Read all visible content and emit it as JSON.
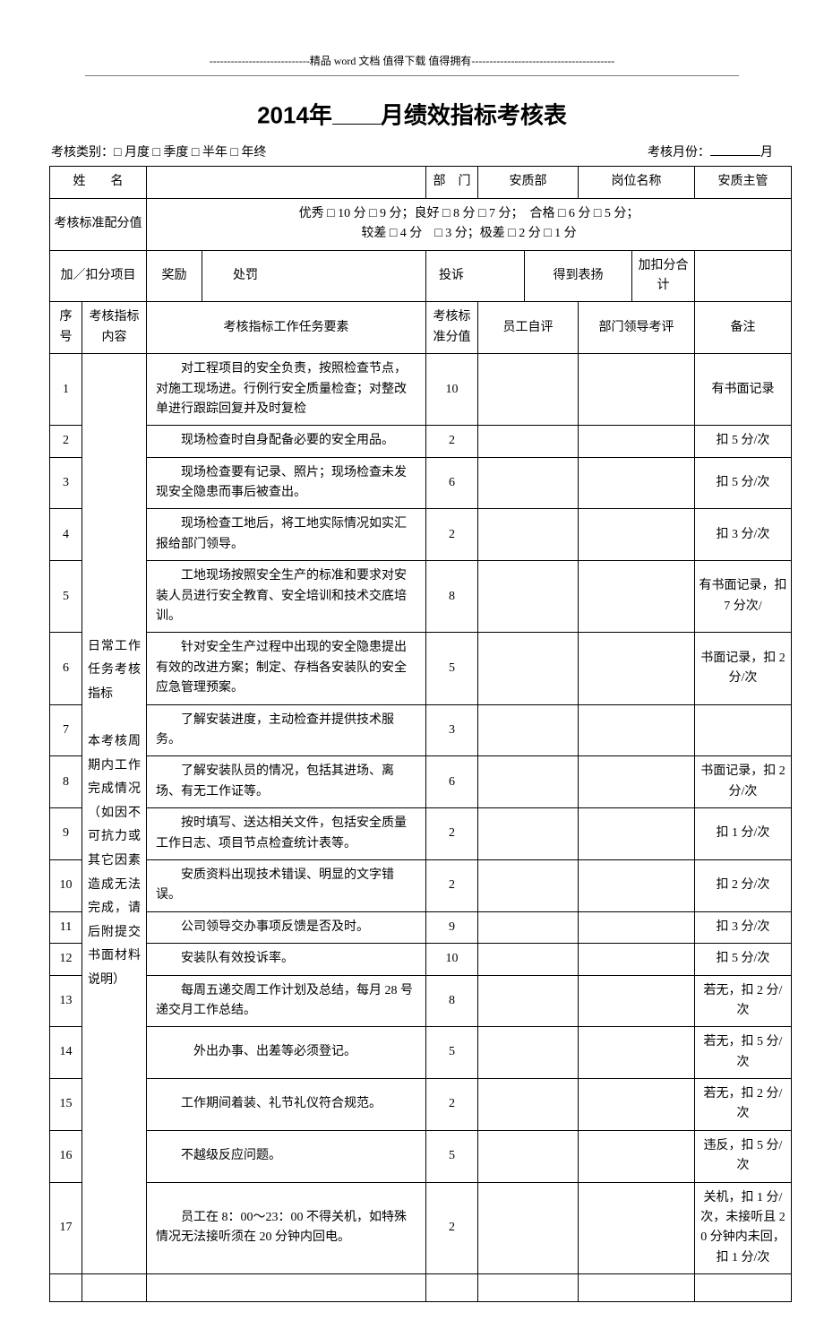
{
  "header_deco": {
    "center_text": "精品 word 文档  值得下载  值得拥有"
  },
  "title": {
    "year": "2014",
    "pre": "年",
    "post": "月绩效指标考核表"
  },
  "meta": {
    "left_label": "考核类别：",
    "options": "□ 月度  □ 季度  □ 半年  □ 年终",
    "right_label": "考核月份：",
    "right_suffix": "月"
  },
  "info_row": {
    "name_label": "姓　　名",
    "name_value": "",
    "dept_label": "部　门",
    "dept_value": "安质部",
    "post_label": "岗位名称",
    "post_value": "安质主管"
  },
  "score_std": {
    "label": "考核标准配分值",
    "text": "优秀  □ 10 分  □ 9 分；良好  □ 8 分  □ 7 分；　合格  □ 6 分  □ 5 分；\n较差  □ 4 分　□ 3 分；极差  □ 2 分  □ 1 分"
  },
  "adj_row": {
    "label": "加／扣分项目",
    "c1": "奖励",
    "c2": "处罚",
    "c3": "投诉",
    "c4": "得到表扬",
    "c5": "加扣分合计"
  },
  "columns": {
    "seq": "序号",
    "cat": "考核指标内容",
    "task": "考核指标工作任务要素",
    "std": "考核标准分值",
    "self": "员工自评",
    "leader": "部门领导考评",
    "note": "备注"
  },
  "category_label": "日常工作任务考核指标\n\n本考核周期内工作完成情况（如因不可抗力或其它因素造成无法完成，请后附提交书面材料说明）",
  "rows": [
    {
      "seq": "1",
      "task": "对工程项目的安全负责，按照检查节点，对施工现场进。行例行安全质量检查；对整改单进行跟踪回复并及时复检",
      "std": "10",
      "note": "有书面记录"
    },
    {
      "seq": "2",
      "task": "现场检查时自身配备必要的安全用品。",
      "std": "2",
      "note": "扣 5 分/次"
    },
    {
      "seq": "3",
      "task": "现场检查要有记录、照片；现场检查未发现安全隐患而事后被查出。",
      "std": "6",
      "note": "扣 5 分/次"
    },
    {
      "seq": "4",
      "task": "现场检查工地后，将工地实际情况如实汇报给部门领导。",
      "std": "2",
      "note": "扣 3 分/次"
    },
    {
      "seq": "5",
      "task": "工地现场按照安全生产的标准和要求对安装人员进行安全教育、安全培训和技术交底培训。",
      "std": "8",
      "note": "有书面记录，扣 7 分次/"
    },
    {
      "seq": "6",
      "task": "针对安全生产过程中出现的安全隐患提出有效的改进方案；制定、存档各安装队的安全应急管理预案。",
      "std": "5",
      "note": "书面记录，扣 2 分/次"
    },
    {
      "seq": "7",
      "task": "了解安装进度，主动检查并提供技术服务。",
      "std": "3",
      "note": ""
    },
    {
      "seq": "8",
      "task": "了解安装队员的情况，包括其进场、离场、有无工作证等。",
      "std": "6",
      "note": "书面记录，扣 2 分/次"
    },
    {
      "seq": "9",
      "task": "按时填写、送达相关文件，包括安全质量工作日志、项目节点检查统计表等。",
      "std": "2",
      "note": "扣 1 分/次"
    },
    {
      "seq": "10",
      "task": "安质资料出现技术错误、明显的文字错误。",
      "std": "2",
      "note": "扣 2 分/次"
    },
    {
      "seq": "11",
      "task": "公司领导交办事项反馈是否及时。",
      "std": "9",
      "note": "扣 3 分/次"
    },
    {
      "seq": "12",
      "task": "安装队有效投诉率。",
      "std": "10",
      "note": "扣 5 分/次"
    },
    {
      "seq": "13",
      "task": "每周五递交周工作计划及总结，每月 28 号递交月工作总结。",
      "std": "8",
      "note": "若无，扣 2 分/次"
    },
    {
      "seq": "14",
      "task": "　外出办事、出差等必须登记。",
      "std": "5",
      "note": "若无，扣 5 分/次"
    },
    {
      "seq": "15",
      "task": "工作期间着装、礼节礼仪符合规范。",
      "std": "2",
      "note": "若无，扣 2 分/次"
    },
    {
      "seq": "16",
      "task": "不越级反应问题。",
      "std": "5",
      "note": "违反，扣 5 分/次"
    },
    {
      "seq": "17",
      "task": "员工在 8：00～23：00 不得关机，如特殊情况无法接听须在 20 分钟内回电。",
      "std": "2",
      "note": "关机，扣 1 分/次，未接听且 20 分钟内未回，扣 1 分/次"
    }
  ]
}
